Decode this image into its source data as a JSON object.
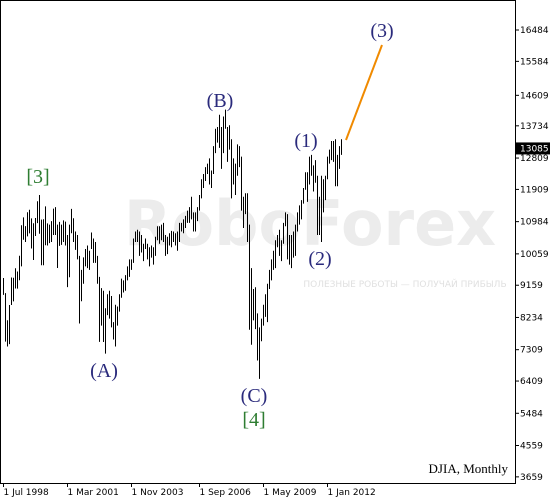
{
  "chart_data": {
    "type": "range_bar",
    "instrument_label": "DJIA, Monthly",
    "watermark": "RoboForex",
    "watermark_tagline": "ПОЛЕЗНЫЕ РОБОТЫ — ПОЛУЧАЙ ПРИБЫЛЬ",
    "color": "#000000",
    "x": [
      "1998-07-01",
      "1998-08-01",
      "1998-09-01",
      "1998-10-01",
      "1998-11-01",
      "1998-12-01",
      "1999-01-01",
      "1999-02-01",
      "1999-03-01",
      "1999-04-01",
      "1999-05-01",
      "1999-06-01",
      "1999-07-01",
      "1999-08-01",
      "1999-09-01",
      "1999-10-01",
      "1999-11-01",
      "1999-12-01",
      "2000-01-01",
      "2000-02-01",
      "2000-03-01",
      "2000-04-01",
      "2000-05-01",
      "2000-06-01",
      "2000-07-01",
      "2000-08-01",
      "2000-09-01",
      "2000-10-01",
      "2000-11-01",
      "2000-12-01",
      "2001-01-01",
      "2001-02-01",
      "2001-03-01",
      "2001-04-01",
      "2001-05-01",
      "2001-06-01",
      "2001-07-01",
      "2001-08-01",
      "2001-09-01",
      "2001-10-01",
      "2001-11-01",
      "2001-12-01",
      "2002-01-01",
      "2002-02-01",
      "2002-03-01",
      "2002-04-01",
      "2002-05-01",
      "2002-06-01",
      "2002-07-01",
      "2002-08-01",
      "2002-09-01",
      "2002-10-01",
      "2002-11-01",
      "2002-12-01",
      "2003-01-01",
      "2003-02-01",
      "2003-03-01",
      "2003-04-01",
      "2003-05-01",
      "2003-06-01",
      "2003-07-01",
      "2003-08-01",
      "2003-09-01",
      "2003-10-01",
      "2003-11-01",
      "2003-12-01",
      "2004-01-01",
      "2004-02-01",
      "2004-03-01",
      "2004-04-01",
      "2004-05-01",
      "2004-06-01",
      "2004-07-01",
      "2004-08-01",
      "2004-09-01",
      "2004-10-01",
      "2004-11-01",
      "2004-12-01",
      "2005-01-01",
      "2005-02-01",
      "2005-03-01",
      "2005-04-01",
      "2005-05-01",
      "2005-06-01",
      "2005-07-01",
      "2005-08-01",
      "2005-09-01",
      "2005-10-01",
      "2005-11-01",
      "2005-12-01",
      "2006-01-01",
      "2006-02-01",
      "2006-03-01",
      "2006-04-01",
      "2006-05-01",
      "2006-06-01",
      "2006-07-01",
      "2006-08-01",
      "2006-09-01",
      "2006-10-01",
      "2006-11-01",
      "2006-12-01",
      "2007-01-01",
      "2007-02-01",
      "2007-03-01",
      "2007-04-01",
      "2007-05-01",
      "2007-06-01",
      "2007-07-01",
      "2007-08-01",
      "2007-09-01",
      "2007-10-01",
      "2007-11-01",
      "2007-12-01",
      "2008-01-01",
      "2008-02-01",
      "2008-03-01",
      "2008-04-01",
      "2008-05-01",
      "2008-06-01",
      "2008-07-01",
      "2008-08-01",
      "2008-09-01",
      "2008-10-01",
      "2008-11-01",
      "2008-12-01",
      "2009-01-01",
      "2009-02-01",
      "2009-03-01",
      "2009-04-01",
      "2009-05-01",
      "2009-06-01",
      "2009-07-01",
      "2009-08-01",
      "2009-09-01",
      "2009-10-01",
      "2009-11-01",
      "2009-12-01",
      "2010-01-01",
      "2010-02-01",
      "2010-03-01",
      "2010-04-01",
      "2010-05-01",
      "2010-06-01",
      "2010-07-01",
      "2010-08-01",
      "2010-09-01",
      "2010-10-01",
      "2010-11-01",
      "2010-12-01",
      "2011-01-01",
      "2011-02-01",
      "2011-03-01",
      "2011-04-01",
      "2011-05-01",
      "2011-06-01",
      "2011-07-01",
      "2011-08-01",
      "2011-09-01",
      "2011-10-01",
      "2011-11-01",
      "2011-12-01",
      "2012-01-01",
      "2012-02-01",
      "2012-03-01",
      "2012-04-01",
      "2012-05-01",
      "2012-06-01",
      "2012-07-01",
      "2012-08-01"
    ],
    "high": [
      9367,
      8933,
      8154,
      8592,
      9380,
      9374,
      9647,
      9552,
      10006,
      10879,
      11108,
      10856,
      11252,
      11326,
      11079,
      10939,
      11090,
      11568,
      11750,
      11041,
      11051,
      11421,
      10935,
      10898,
      11000,
      11356,
      11400,
      10900,
      10977,
      10899,
      11019,
      10983,
      10600,
      10900,
      11350,
      11080,
      10700,
      10600,
      10000,
      9600,
      9960,
      10200,
      10300,
      10150,
      10673,
      10500,
      10400,
      10000,
      9400,
      9077,
      9000,
      8500,
      8900,
      9000,
      8850,
      8100,
      8600,
      8550,
      8900,
      9350,
      9300,
      9450,
      9700,
      9900,
      9900,
      10500,
      10700,
      10750,
      10700,
      10600,
      10350,
      10500,
      10350,
      10250,
      10300,
      10250,
      10550,
      10850,
      10850,
      10900,
      10950,
      10600,
      10550,
      10650,
      10720,
      10700,
      10650,
      10700,
      10950,
      10950,
      11050,
      11150,
      11300,
      11400,
      11700,
      11250,
      11250,
      11400,
      11750,
      12200,
      12350,
      12550,
      12650,
      12800,
      12450,
      13150,
      13650,
      13700,
      14050,
      13700,
      14000,
      14198,
      13700,
      13750,
      13350,
      12800,
      12650,
      13200,
      13150,
      12850,
      11700,
      11800,
      11800,
      10900,
      9650,
      9050,
      9100,
      8350,
      7950,
      8200,
      8600,
      8900,
      9200,
      9600,
      9900,
      10150,
      10450,
      10600,
      10750,
      10450,
      10950,
      11250,
      11200,
      10600,
      10600,
      10700,
      10900,
      11250,
      11450,
      11600,
      11950,
      12400,
      12400,
      12850,
      12900,
      12600,
      12750,
      12300,
      11700,
      12300,
      12200,
      12300,
      12850,
      13050,
      13300,
      13300,
      13350,
      12900,
      13150,
      13350
    ],
    "low": [
      8883,
      7539,
      7400,
      7467,
      8592,
      8695,
      9066,
      9063,
      9302,
      9700,
      10466,
      10398,
      10560,
      10646,
      10213,
      9884,
      10571,
      10940,
      10638,
      9731,
      9731,
      10305,
      10299,
      10367,
      10400,
      10600,
      10600,
      9654,
      10288,
      10318,
      10400,
      10300,
      9106,
      9389,
      10650,
      10400,
      10175,
      9900,
      8062,
      8700,
      9200,
      9700,
      9650,
      9600,
      10200,
      9800,
      9800,
      9200,
      7532,
      8000,
      7528,
      7197,
      8300,
      8200,
      7950,
      7600,
      7400,
      8000,
      8400,
      8800,
      8950,
      9000,
      9300,
      9400,
      9600,
      9800,
      10400,
      10400,
      10000,
      10100,
      9850,
      10200,
      9900,
      9700,
      9950,
      9750,
      10000,
      10450,
      10350,
      10450,
      10400,
      10000,
      10050,
      10300,
      10250,
      10400,
      10300,
      10150,
      10400,
      10700,
      10650,
      10800,
      10950,
      10950,
      11050,
      10700,
      10700,
      11000,
      11300,
      11650,
      11950,
      12150,
      12350,
      12050,
      11950,
      12350,
      12950,
      13250,
      13100,
      12500,
      12950,
      13650,
      12700,
      13050,
      11650,
      12050,
      11750,
      12300,
      12550,
      11300,
      10800,
      11200,
      10400,
      7882,
      7450,
      8150,
      7900,
      7000,
      6470,
      7550,
      8000,
      8250,
      8100,
      9050,
      9300,
      9600,
      9650,
      10250,
      10000,
      9850,
      10350,
      10850,
      9900,
      9750,
      9650,
      9950,
      10000,
      10700,
      10900,
      11050,
      11500,
      11900,
      11550,
      12050,
      12300,
      11850,
      12100,
      10600,
      10600,
      10400,
      11250,
      11600,
      12200,
      12650,
      12750,
      12700,
      12000,
      12000,
      12500,
      12900
    ],
    "last_price": 13085,
    "ylim": [
      3483,
      17345
    ],
    "yticks": [
      16484,
      15584,
      14609,
      13734,
      12809,
      11909,
      10984,
      10059,
      9159,
      8234,
      7309,
      6409,
      5484,
      4559,
      3659
    ],
    "xticks": [
      {
        "value": "1998-07-01",
        "label": "1 Jul 1998"
      },
      {
        "value": "2001-03-01",
        "label": "1 Mar 2001"
      },
      {
        "value": "2003-11-01",
        "label": "1 Nov 2003"
      },
      {
        "value": "2006-09-01",
        "label": "1 Sep 2006"
      },
      {
        "value": "2009-05-01",
        "label": "1 May 2009"
      },
      {
        "value": "2012-01-01",
        "label": "1 Jan 2012"
      }
    ],
    "annotations": [
      {
        "text": "(3)",
        "color": "#2a2a7c"
      },
      {
        "text": "(B)",
        "color": "#2a2a7c"
      },
      {
        "text": "(1)",
        "color": "#2a2a7c"
      },
      {
        "text": "[3]",
        "color": "#2e7d32"
      },
      {
        "text": "(2)",
        "color": "#2a2a7c"
      },
      {
        "text": "(A)",
        "color": "#2a2a7c"
      },
      {
        "text": "(C)",
        "color": "#2a2a7c"
      },
      {
        "text": "[4]",
        "color": "#2e7d32"
      }
    ]
  }
}
